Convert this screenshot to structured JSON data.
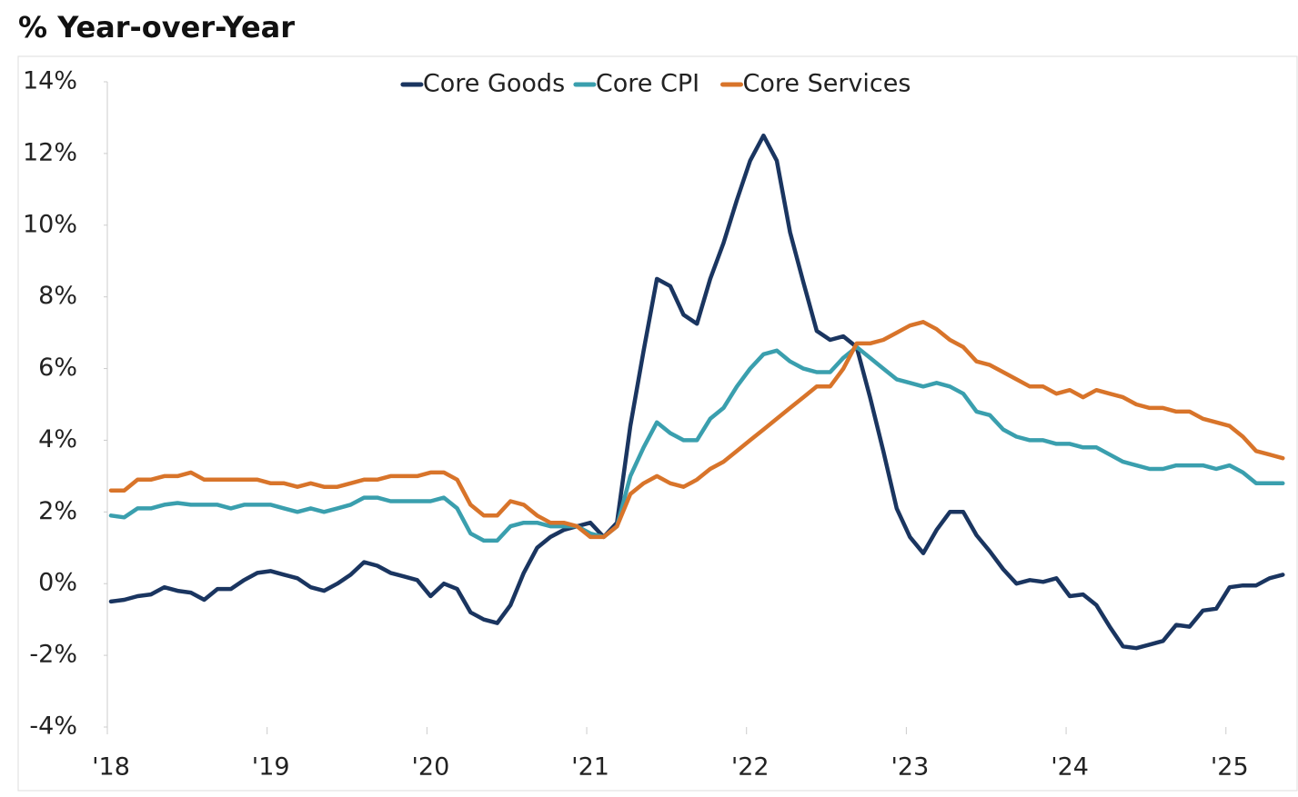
{
  "chart_data": {
    "type": "line",
    "title": "% Year-over-Year",
    "categories": [
      "'18",
      null,
      null,
      null,
      null,
      null,
      null,
      null,
      null,
      null,
      null,
      null,
      "'19",
      null,
      null,
      null,
      null,
      null,
      null,
      null,
      null,
      null,
      null,
      null,
      "'20",
      null,
      null,
      null,
      null,
      null,
      null,
      null,
      null,
      null,
      null,
      null,
      "'21",
      null,
      null,
      null,
      null,
      null,
      null,
      null,
      null,
      null,
      null,
      null,
      "'22",
      null,
      null,
      null,
      null,
      null,
      null,
      null,
      null,
      null,
      null,
      null,
      "'23",
      null,
      null,
      null,
      null,
      null,
      null,
      null,
      null,
      null,
      null,
      null,
      "'24",
      null,
      null,
      null,
      null,
      null,
      null,
      null,
      null,
      null,
      null,
      null,
      "'25",
      null,
      null,
      null,
      null
    ],
    "series": [
      {
        "name": "Core Goods",
        "color": "#1a3560",
        "values": [
          -0.5,
          -0.45,
          -0.35,
          -0.3,
          -0.1,
          -0.2,
          -0.25,
          -0.45,
          -0.15,
          -0.15,
          0.1,
          0.3,
          0.35,
          0.25,
          0.15,
          -0.1,
          -0.2,
          0.0,
          0.25,
          0.6,
          0.5,
          0.3,
          0.2,
          0.1,
          -0.35,
          0.0,
          -0.15,
          -0.8,
          -1.0,
          -1.1,
          -0.6,
          0.3,
          1.0,
          1.3,
          1.5,
          1.6,
          1.7,
          1.3,
          1.7,
          4.4,
          6.5,
          8.5,
          8.3,
          7.5,
          7.25,
          8.5,
          9.5,
          10.7,
          11.8,
          12.5,
          11.8,
          9.8,
          8.4,
          7.05,
          6.8,
          6.9,
          6.6,
          5.2,
          3.7,
          2.1,
          1.3,
          0.85,
          1.5,
          2.0,
          2.0,
          1.35,
          0.9,
          0.4,
          0.0,
          0.1,
          0.05,
          0.15,
          -0.35,
          -0.3,
          -0.6,
          -1.2,
          -1.75,
          -1.8,
          -1.7,
          -1.6,
          -1.15,
          -1.2,
          -0.75,
          -0.7,
          -0.1,
          -0.05,
          -0.05,
          0.15,
          0.25
        ]
      },
      {
        "name": "Core CPI",
        "color": "#3a9fae",
        "values": [
          1.9,
          1.85,
          2.1,
          2.1,
          2.2,
          2.25,
          2.2,
          2.2,
          2.2,
          2.1,
          2.2,
          2.2,
          2.2,
          2.1,
          2.0,
          2.1,
          2.0,
          2.1,
          2.2,
          2.4,
          2.4,
          2.3,
          2.3,
          2.3,
          2.3,
          2.4,
          2.1,
          1.4,
          1.2,
          1.2,
          1.6,
          1.7,
          1.7,
          1.6,
          1.6,
          1.6,
          1.4,
          1.3,
          1.6,
          3.0,
          3.8,
          4.5,
          4.2,
          4.0,
          4.0,
          4.6,
          4.9,
          5.5,
          6.0,
          6.4,
          6.5,
          6.2,
          6.0,
          5.9,
          5.9,
          6.3,
          6.6,
          6.3,
          6.0,
          5.7,
          5.6,
          5.5,
          5.6,
          5.5,
          5.3,
          4.8,
          4.7,
          4.3,
          4.1,
          4.0,
          4.0,
          3.9,
          3.9,
          3.8,
          3.8,
          3.6,
          3.4,
          3.3,
          3.2,
          3.2,
          3.3,
          3.3,
          3.3,
          3.2,
          3.3,
          3.1,
          2.8,
          2.8,
          2.8
        ]
      },
      {
        "name": "Core Services",
        "color": "#d8742a",
        "values": [
          2.6,
          2.6,
          2.9,
          2.9,
          3.0,
          3.0,
          3.1,
          2.9,
          2.9,
          2.9,
          2.9,
          2.9,
          2.8,
          2.8,
          2.7,
          2.8,
          2.7,
          2.7,
          2.8,
          2.9,
          2.9,
          3.0,
          3.0,
          3.0,
          3.1,
          3.1,
          2.9,
          2.2,
          1.9,
          1.9,
          2.3,
          2.2,
          1.9,
          1.7,
          1.7,
          1.6,
          1.3,
          1.3,
          1.6,
          2.5,
          2.8,
          3.0,
          2.8,
          2.7,
          2.9,
          3.2,
          3.4,
          3.7,
          4.0,
          4.3,
          4.6,
          4.9,
          5.2,
          5.5,
          5.5,
          6.0,
          6.7,
          6.7,
          6.8,
          7.0,
          7.2,
          7.3,
          7.1,
          6.8,
          6.6,
          6.2,
          6.1,
          5.9,
          5.7,
          5.5,
          5.5,
          5.3,
          5.4,
          5.2,
          5.4,
          5.3,
          5.2,
          5.0,
          4.9,
          4.9,
          4.8,
          4.8,
          4.6,
          4.5,
          4.4,
          4.1,
          3.7,
          3.6,
          3.5
        ]
      }
    ],
    "ylim": [
      -4,
      14
    ],
    "yticks": [
      {
        "value": -4,
        "label": "-4%"
      },
      {
        "value": -2,
        "label": "-2%"
      },
      {
        "value": 0,
        "label": "0%"
      },
      {
        "value": 2,
        "label": "2%"
      },
      {
        "value": 4,
        "label": "4%"
      },
      {
        "value": 6,
        "label": "6%"
      },
      {
        "value": 8,
        "label": "8%"
      },
      {
        "value": 10,
        "label": "10%"
      },
      {
        "value": 12,
        "label": "12%"
      },
      {
        "value": 14,
        "label": "14%"
      }
    ],
    "grid": false,
    "legend": "top"
  }
}
